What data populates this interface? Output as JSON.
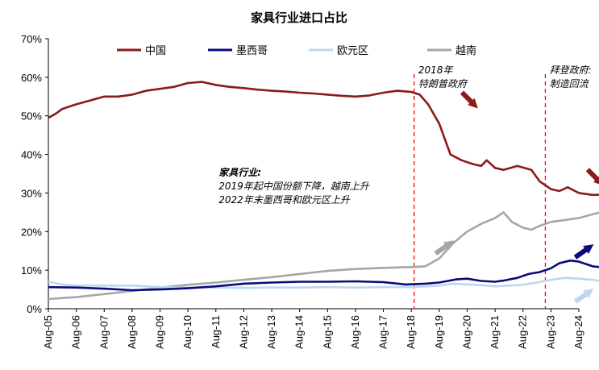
{
  "chart_data": {
    "type": "line",
    "title": "家具行业进口占比",
    "xlabel": "",
    "ylabel": "",
    "ylim": [
      0,
      70
    ],
    "yticks": [
      "0%",
      "10%",
      "20%",
      "30%",
      "40%",
      "50%",
      "60%",
      "70%"
    ],
    "x": [
      "Aug-05",
      "Aug-06",
      "Aug-07",
      "Aug-08",
      "Aug-09",
      "Aug-10",
      "Aug-11",
      "Aug-12",
      "Aug-13",
      "Aug-14",
      "Aug-15",
      "Aug-16",
      "Aug-17",
      "Aug-18",
      "Aug-19",
      "Aug-20",
      "Aug-21",
      "Aug-22",
      "Aug-23",
      "Aug-24"
    ],
    "legend_position": "top",
    "grid": false,
    "series": [
      {
        "name": "中国",
        "color": "#8B1A1A",
        "points": [
          [
            0,
            49.5
          ],
          [
            0.25,
            50.5
          ],
          [
            0.5,
            51.8
          ],
          [
            1,
            53
          ],
          [
            1.5,
            54
          ],
          [
            2,
            55
          ],
          [
            2.5,
            55
          ],
          [
            3,
            55.5
          ],
          [
            3.5,
            56.5
          ],
          [
            4,
            57
          ],
          [
            4.5,
            57.5
          ],
          [
            5,
            58.5
          ],
          [
            5.5,
            58.8
          ],
          [
            6,
            58
          ],
          [
            6.5,
            57.5
          ],
          [
            7,
            57.2
          ],
          [
            7.5,
            56.8
          ],
          [
            8,
            56.5
          ],
          [
            8.5,
            56.3
          ],
          [
            9,
            56
          ],
          [
            9.5,
            55.8
          ],
          [
            10,
            55.5
          ],
          [
            10.5,
            55.2
          ],
          [
            11,
            55
          ],
          [
            11.5,
            55.3
          ],
          [
            12,
            56
          ],
          [
            12.5,
            56.5
          ],
          [
            13,
            56.2
          ],
          [
            13.3,
            55.5
          ],
          [
            13.6,
            53
          ],
          [
            14,
            48
          ],
          [
            14.4,
            40
          ],
          [
            14.8,
            38.5
          ],
          [
            15.2,
            37.5
          ],
          [
            15.5,
            37
          ],
          [
            15.7,
            38.5
          ],
          [
            16,
            36.5
          ],
          [
            16.3,
            36
          ],
          [
            16.8,
            37
          ],
          [
            17.3,
            36
          ],
          [
            17.6,
            33
          ],
          [
            18,
            31
          ],
          [
            18.3,
            30.5
          ],
          [
            18.6,
            31.5
          ],
          [
            19,
            30
          ],
          [
            19.5,
            29.5
          ],
          [
            20,
            29.6
          ]
        ]
      },
      {
        "name": "墨西哥",
        "color": "#0A0A7A",
        "points": [
          [
            0,
            5.6
          ],
          [
            1,
            5.5
          ],
          [
            2,
            5.2
          ],
          [
            3,
            4.8
          ],
          [
            4,
            5
          ],
          [
            5,
            5.3
          ],
          [
            6,
            5.8
          ],
          [
            7,
            6.5
          ],
          [
            8,
            6.8
          ],
          [
            9,
            7
          ],
          [
            10,
            7
          ],
          [
            11,
            7.1
          ],
          [
            12,
            6.9
          ],
          [
            12.8,
            6.3
          ],
          [
            13.5,
            6.5
          ],
          [
            14,
            6.8
          ],
          [
            14.6,
            7.6
          ],
          [
            15,
            7.8
          ],
          [
            15.5,
            7.2
          ],
          [
            16,
            7
          ],
          [
            16.3,
            7.3
          ],
          [
            16.8,
            8
          ],
          [
            17.2,
            9
          ],
          [
            17.6,
            9.5
          ],
          [
            18,
            10.5
          ],
          [
            18.3,
            11.8
          ],
          [
            18.7,
            12.5
          ],
          [
            19,
            12.2
          ],
          [
            19.5,
            11
          ],
          [
            20,
            10.6
          ]
        ]
      },
      {
        "name": "欧元区",
        "color": "#BDD7EE",
        "points": [
          [
            0,
            7
          ],
          [
            0.5,
            6.3
          ],
          [
            1,
            6
          ],
          [
            2,
            6
          ],
          [
            3,
            6
          ],
          [
            4,
            5.6
          ],
          [
            5,
            5.5
          ],
          [
            6,
            5.5
          ],
          [
            7,
            5.4
          ],
          [
            8,
            5.5
          ],
          [
            9,
            5.5
          ],
          [
            10,
            5.6
          ],
          [
            11,
            5.5
          ],
          [
            12,
            5.6
          ],
          [
            13,
            5.6
          ],
          [
            14,
            6
          ],
          [
            14.5,
            6.5
          ],
          [
            15,
            6.3
          ],
          [
            15.5,
            6.1
          ],
          [
            16,
            5.8
          ],
          [
            17,
            6.2
          ],
          [
            17.5,
            6.8
          ],
          [
            18,
            7.5
          ],
          [
            18.5,
            8
          ],
          [
            19,
            7.8
          ],
          [
            19.5,
            7.5
          ],
          [
            20,
            6.9
          ]
        ]
      },
      {
        "name": "越南",
        "color": "#A6A6A6",
        "points": [
          [
            0,
            2.5
          ],
          [
            1,
            3
          ],
          [
            2,
            3.8
          ],
          [
            3,
            4.6
          ],
          [
            4,
            5.5
          ],
          [
            5,
            6.2
          ],
          [
            6,
            6.8
          ],
          [
            7,
            7.5
          ],
          [
            8,
            8.2
          ],
          [
            9,
            9
          ],
          [
            10,
            9.8
          ],
          [
            11,
            10.3
          ],
          [
            12,
            10.6
          ],
          [
            13,
            10.8
          ],
          [
            13.5,
            11
          ],
          [
            14,
            13
          ],
          [
            14.5,
            17
          ],
          [
            15,
            20
          ],
          [
            15.5,
            22
          ],
          [
            16,
            23.5
          ],
          [
            16.3,
            25
          ],
          [
            16.6,
            22.5
          ],
          [
            17,
            21
          ],
          [
            17.3,
            20.5
          ],
          [
            17.6,
            21.5
          ],
          [
            18,
            22.5
          ],
          [
            18.5,
            23
          ],
          [
            19,
            23.5
          ],
          [
            19.5,
            24.5
          ],
          [
            20,
            25.5
          ]
        ]
      }
    ],
    "vlines": [
      {
        "x": 13.1,
        "color": "#FF0000"
      },
      {
        "x": 17.8,
        "color": "#FF0000"
      }
    ],
    "annotations": [
      {
        "lines": [
          "2018年",
          "特朗普政府"
        ],
        "x": 13.25,
        "y": 61,
        "bold": false
      },
      {
        "lines": [
          "拜登政府:",
          "制造回流"
        ],
        "x": 17.95,
        "y": 61,
        "bold": false
      },
      {
        "lines": [
          "家具行业:",
          "2019年起中国份额下降，越南上升",
          "2022年末墨西哥和欧元区上升"
        ],
        "x": 6.1,
        "y": 34.5,
        "bold": true
      }
    ],
    "arrows": [
      {
        "color": "#8B1A1A",
        "direction": "down-right",
        "at": [
          15.1,
          54
        ]
      },
      {
        "color": "#8B1A1A",
        "direction": "down-right",
        "at": [
          19.6,
          34
        ]
      },
      {
        "color": "#A6A6A6",
        "direction": "up-right",
        "at": [
          14.2,
          16
        ]
      },
      {
        "color": "#0A0A7A",
        "direction": "up-right",
        "at": [
          19.2,
          15
        ]
      },
      {
        "color": "#BDD7EE",
        "direction": "up-right",
        "at": [
          19.2,
          3.5
        ]
      }
    ]
  }
}
